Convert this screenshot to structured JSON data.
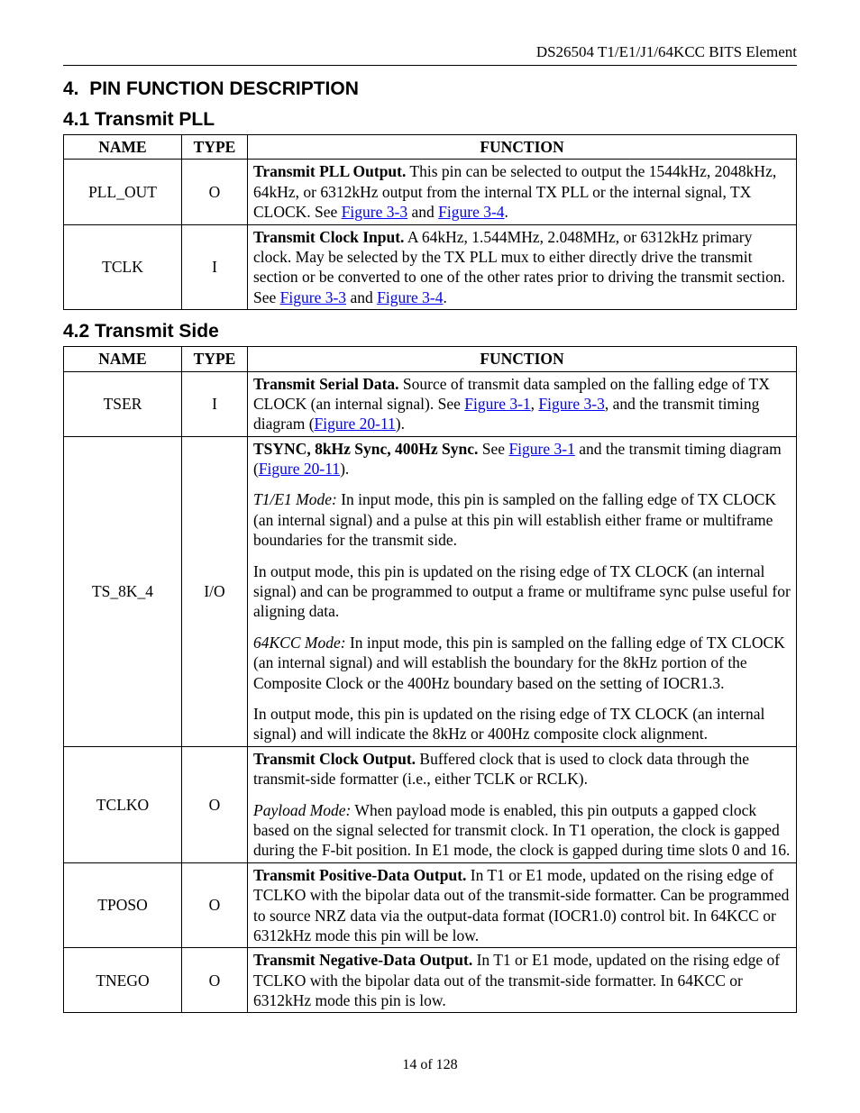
{
  "running_header": "DS26504 T1/E1/J1/64KCC BITS Element",
  "section": {
    "num": "4.",
    "title": "PIN FUNCTION DESCRIPTION"
  },
  "sub1": {
    "num": "4.1",
    "title": "Transmit PLL"
  },
  "sub2": {
    "num": "4.2",
    "title": "Transmit Side"
  },
  "headers": {
    "name": "NAME",
    "type": "TYPE",
    "func": "FUNCTION"
  },
  "links": {
    "fig3_1": "Figure 3-1",
    "fig3_3": "Figure 3-3",
    "fig3_4": "Figure 3-4",
    "fig20_11": "Figure 20-11"
  },
  "table1": {
    "rows": [
      {
        "name": "PLL_OUT",
        "type": "O",
        "bold": "Transmit PLL Output.",
        "body_pre": " This pin can be selected to output the 1544kHz, 2048kHz, 64kHz, or 6312kHz output from the internal TX PLL or the internal signal, TX CLOCK. See ",
        "mid1": " and ",
        "tail": "."
      },
      {
        "name": "TCLK",
        "type": "I",
        "bold": "Transmit Clock Input.",
        "body_pre": " A 64kHz, 1.544MHz, 2.048MHz, or 6312kHz primary clock. May be selected by the TX PLL mux to either directly drive the transmit section or be converted to one of the other rates prior to driving the transmit section. See ",
        "mid1": " and ",
        "tail": "."
      }
    ]
  },
  "table2_tser": {
    "name": "TSER",
    "type": "I",
    "bold": "Transmit Serial Data.",
    "pre": " Source of transmit data sampled on the falling edge of TX CLOCK (an internal signal). See ",
    "mid1": ", ",
    "mid2": ", and the transmit timing diagram (",
    "tail": ")."
  },
  "table2_ts8k4": {
    "name": "TS_8K_4",
    "type": "I/O",
    "p1_bold": "TSYNC, 8kHz Sync, 400Hz Sync.",
    "p1_pre": " See ",
    "p1_mid": " and the transmit timing diagram (",
    "p1_tail": ").",
    "p2_it": "T1/E1 Mode:",
    "p2_body": " In input mode, this pin is sampled on the falling edge of TX CLOCK (an internal signal) and a pulse at this pin will establish either frame or multiframe boundaries for the transmit side.",
    "p3_body": "In output mode, this pin is updated on the rising edge of TX CLOCK (an internal signal) and can be programmed to output a frame or multiframe sync pulse useful for aligning data.",
    "p4_it": "64KCC Mode:",
    "p4_body": " In input mode, this pin is sampled on the falling edge of TX CLOCK (an internal signal) and will establish the boundary for the 8kHz portion of the Composite Clock or the 400Hz boundary based on the setting of IOCR1.3.",
    "p5_body": "In output mode, this pin is updated on the rising edge of TX CLOCK (an internal signal) and will indicate the 8kHz or 400Hz composite clock alignment."
  },
  "table2_tclko": {
    "name": "TCLKO",
    "type": "O",
    "p1_bold": "Transmit Clock Output.",
    "p1_body": " Buffered clock that is used to clock data through the transmit-side formatter (i.e., either TCLK or RCLK).",
    "p2_it": "Payload Mode:",
    "p2_body": " When payload mode is enabled, this pin outputs a gapped clock based on the signal selected for transmit clock.  In T1 operation, the clock is gapped during the F-bit position.  In E1 mode, the clock is gapped during time slots 0 and 16."
  },
  "table2_tposo": {
    "name": "TPOSO",
    "type": "O",
    "bold": "Transmit Positive-Data Output.",
    "body": " In T1 or E1 mode, updated on the rising edge of TCLKO with the bipolar data out of the transmit-side formatter. Can be programmed to source NRZ data via the output-data format (IOCR1.0) control bit. In 64KCC or 6312kHz mode this pin will be low."
  },
  "table2_tnego": {
    "name": "TNEGO",
    "type": "O",
    "bold": "Transmit Negative-Data Output.",
    "body": " In T1 or E1 mode, updated on the rising edge of TCLKO with the bipolar data out of the transmit-side formatter. In 64KCC or 6312kHz mode this pin is low."
  },
  "footer": "14 of 128"
}
